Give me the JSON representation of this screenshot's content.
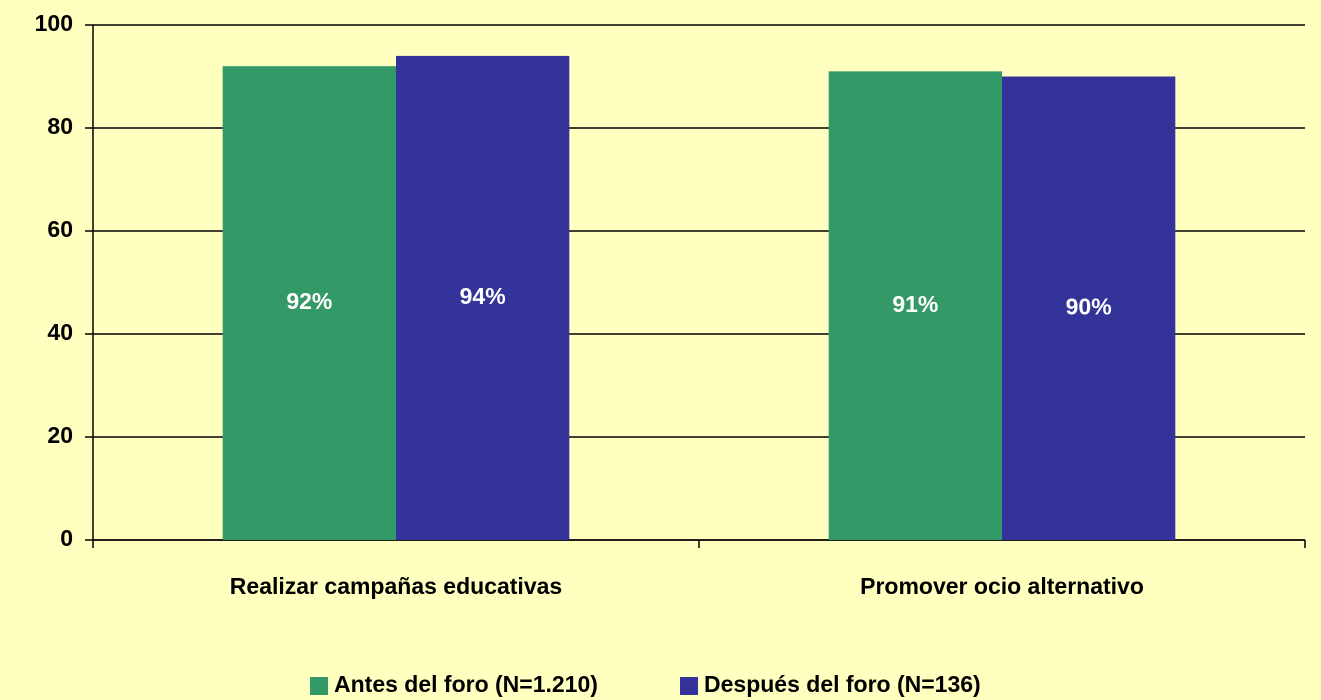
{
  "chart_data": {
    "type": "bar",
    "categories": [
      "Realizar campañas educativas",
      "Promover ocio alternativo"
    ],
    "series": [
      {
        "name": "Antes del foro (N=1.210)",
        "color": "#339966",
        "values": [
          92,
          91
        ],
        "value_labels": [
          "92%",
          "91%"
        ]
      },
      {
        "name": "Después del foro (N=136)",
        "color": "#333399",
        "values": [
          94,
          90
        ],
        "value_labels": [
          "94%",
          "90%"
        ]
      }
    ],
    "ylim": [
      0,
      100
    ],
    "yticks": [
      0,
      20,
      40,
      60,
      80,
      100
    ],
    "grid": true,
    "legend": "bottom",
    "background": "#ffffc0"
  }
}
